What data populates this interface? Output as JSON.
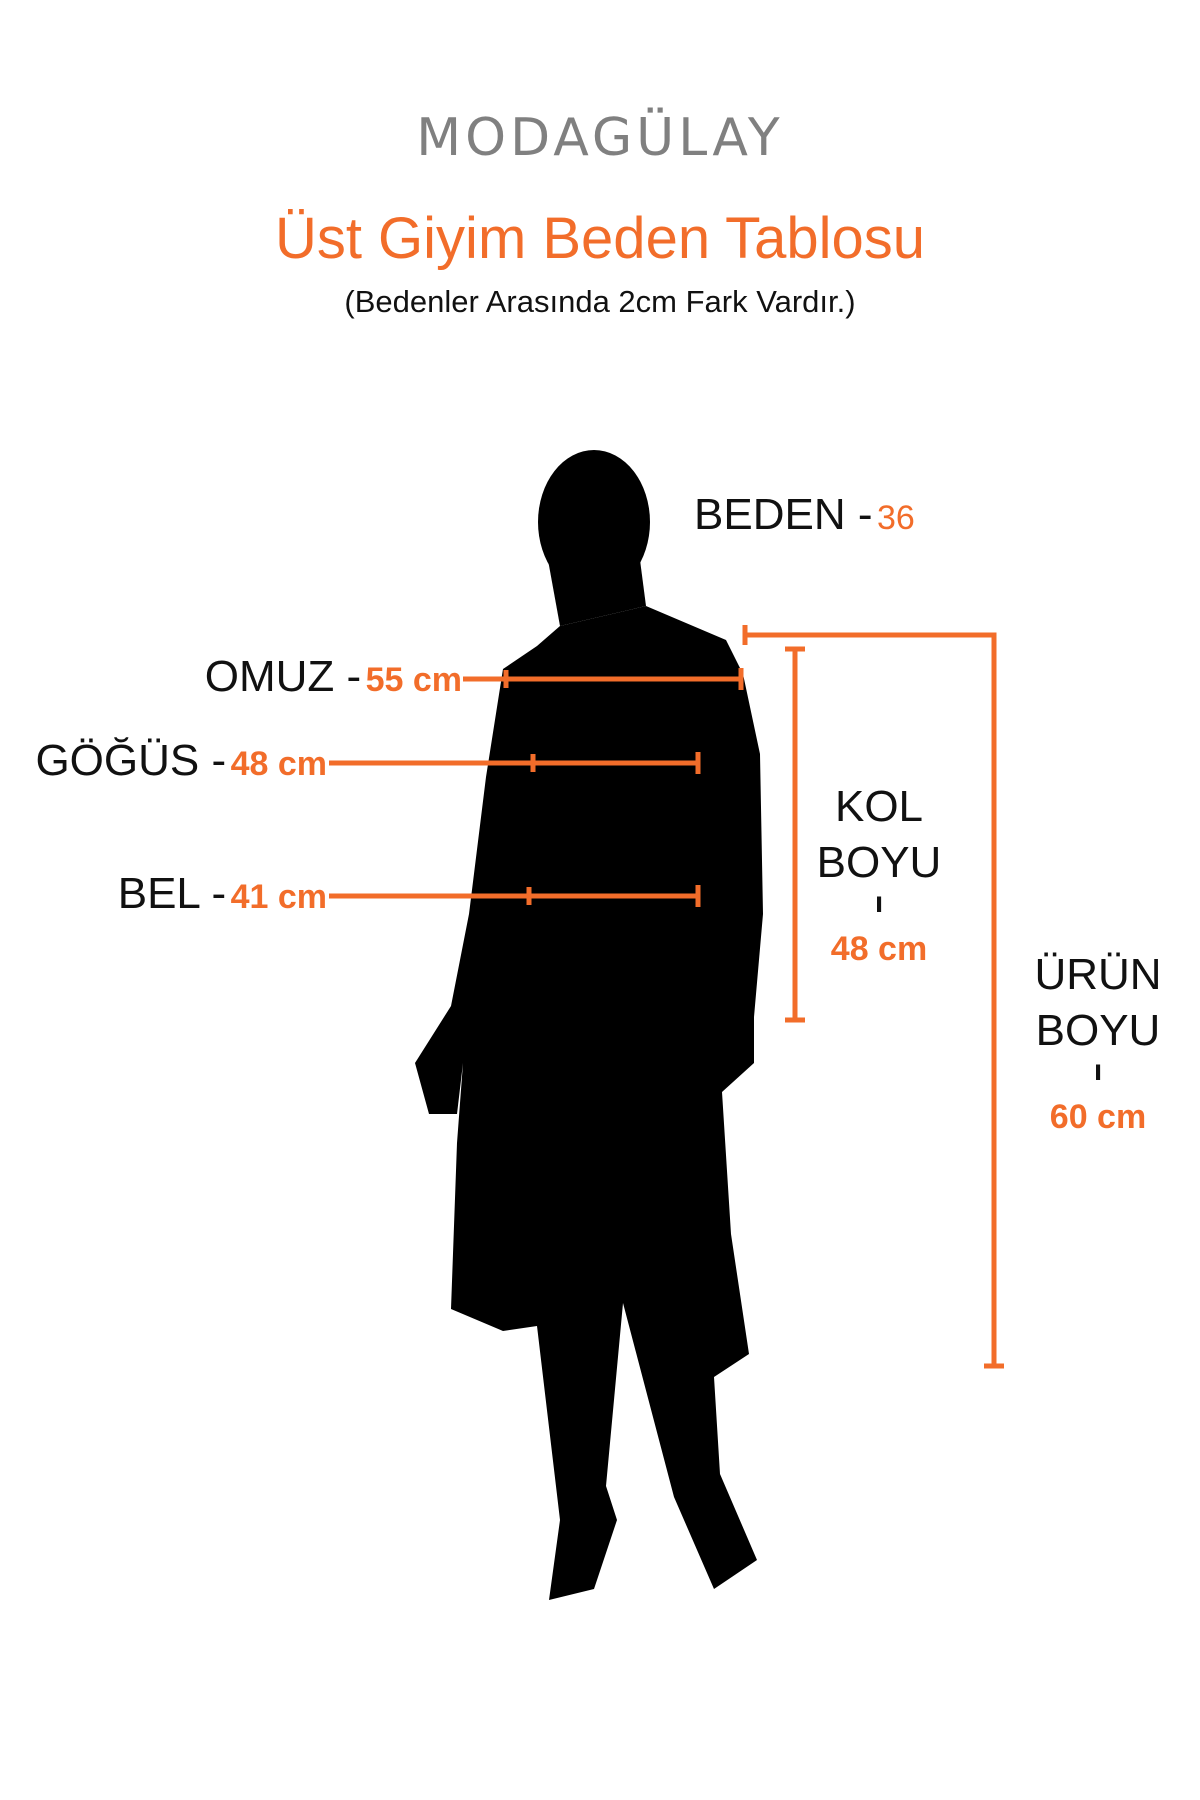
{
  "brand": "MODAGÜLAY",
  "title": "Üst Giyim Beden Tablosu",
  "subtitle": "(Bedenler Arasında 2cm Fark Vardır.)",
  "accent_color": "#f26d2a",
  "figure": "silhouette-woman",
  "size": {
    "label": "BEDEN -",
    "value": "36"
  },
  "measurements": {
    "omuz": {
      "label": "OMUZ -",
      "value": "55 cm"
    },
    "gogus": {
      "label": "GÖĞÜS -",
      "value": "48 cm"
    },
    "bel": {
      "label": "BEL -",
      "value": "41 cm"
    },
    "kol_boyu": {
      "label1": "KOL",
      "label2": "BOYU",
      "sep": "ı",
      "value": "48 cm"
    },
    "urun_boyu": {
      "label1": "ÜRÜN",
      "label2": "BOYU",
      "sep": "ı",
      "value": "60 cm"
    }
  }
}
